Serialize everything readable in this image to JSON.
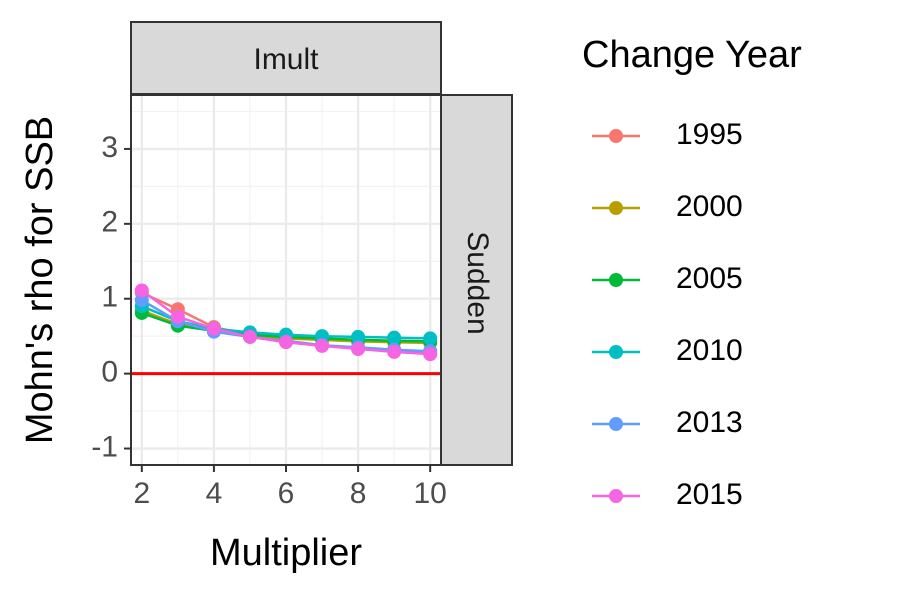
{
  "chart_data": {
    "type": "line",
    "facet_top": "Imult",
    "facet_right": "Sudden",
    "xlabel": "Multiplier",
    "ylabel": "Mohn's rho for SSB",
    "xlim": [
      1.7,
      10.3
    ],
    "ylim": [
      -1.22,
      3.72
    ],
    "x_ticks": [
      "2",
      "4",
      "6",
      "8",
      "10"
    ],
    "x_tick_values": [
      2,
      4,
      6,
      8,
      10
    ],
    "y_ticks": [
      "-1",
      "0",
      "1",
      "2",
      "3"
    ],
    "y_tick_values": [
      -1,
      0,
      1,
      2,
      3
    ],
    "grid": true,
    "reference_line": {
      "y": 0,
      "color": "#ff0000"
    },
    "legend": {
      "title": "Change Year",
      "position": "right"
    },
    "x": [
      2,
      3,
      4,
      5,
      6,
      7,
      8,
      9,
      10
    ],
    "series": [
      {
        "name": "1995",
        "color": "#F8766D",
        "values": [
          1.08,
          0.86,
          0.62,
          0.52,
          0.44,
          0.38,
          0.33,
          0.3,
          0.27
        ]
      },
      {
        "name": "2000",
        "color": "#B79F00",
        "values": [
          0.84,
          0.66,
          0.57,
          0.51,
          0.47,
          0.45,
          0.43,
          0.42,
          0.41
        ]
      },
      {
        "name": "2005",
        "color": "#00BA38",
        "values": [
          0.81,
          0.64,
          0.57,
          0.52,
          0.49,
          0.47,
          0.45,
          0.44,
          0.43
        ]
      },
      {
        "name": "2010",
        "color": "#00BFC4",
        "values": [
          0.9,
          0.7,
          0.6,
          0.55,
          0.52,
          0.5,
          0.49,
          0.48,
          0.47
        ]
      },
      {
        "name": "2013",
        "color": "#619CFF",
        "values": [
          0.98,
          0.7,
          0.56,
          0.49,
          0.43,
          0.38,
          0.35,
          0.32,
          0.3
        ]
      },
      {
        "name": "2015",
        "color": "#F564E3",
        "values": [
          1.11,
          0.76,
          0.6,
          0.49,
          0.42,
          0.37,
          0.33,
          0.29,
          0.26
        ]
      }
    ]
  }
}
